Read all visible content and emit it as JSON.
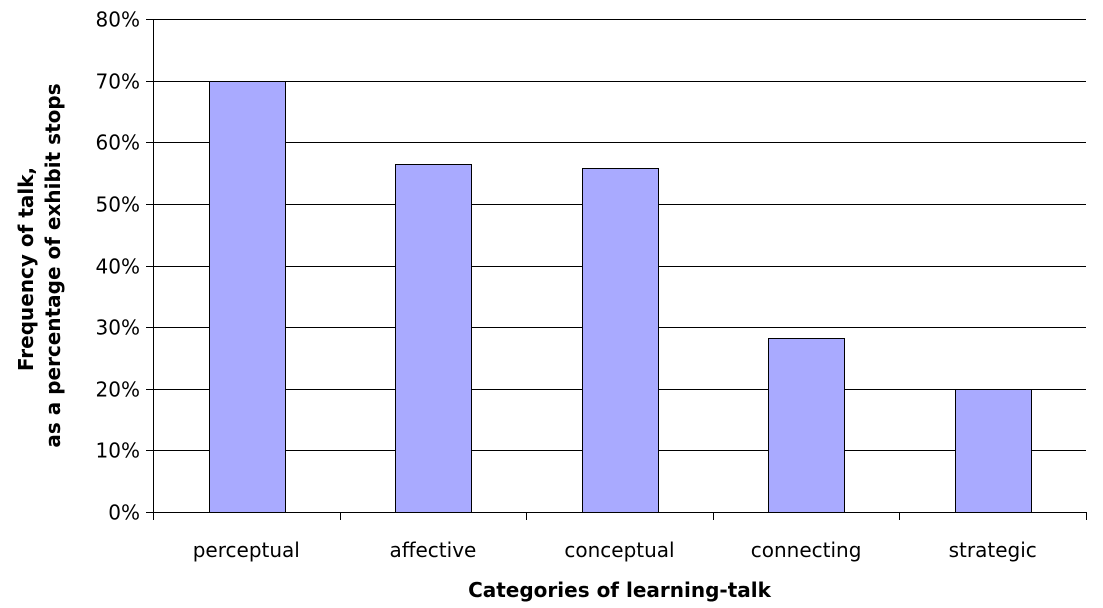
{
  "chart_data": {
    "type": "bar",
    "categories": [
      "perceptual",
      "affective",
      "conceptual",
      "connecting",
      "strategic"
    ],
    "values": [
      70,
      56.5,
      55.8,
      28.2,
      20
    ],
    "value_unit": "%",
    "xlabel": "Categories of learning-talk",
    "ylabel_lines": [
      "Frequency of talk,",
      "as a percentage of exhibit stops"
    ],
    "ylim": [
      0,
      80
    ],
    "ytick_step": 10,
    "yticks": [
      "0%",
      "10%",
      "20%",
      "30%",
      "40%",
      "50%",
      "60%",
      "70%",
      "80%"
    ],
    "grid": true,
    "legend": "none",
    "bar_color": "#a9aaff"
  }
}
